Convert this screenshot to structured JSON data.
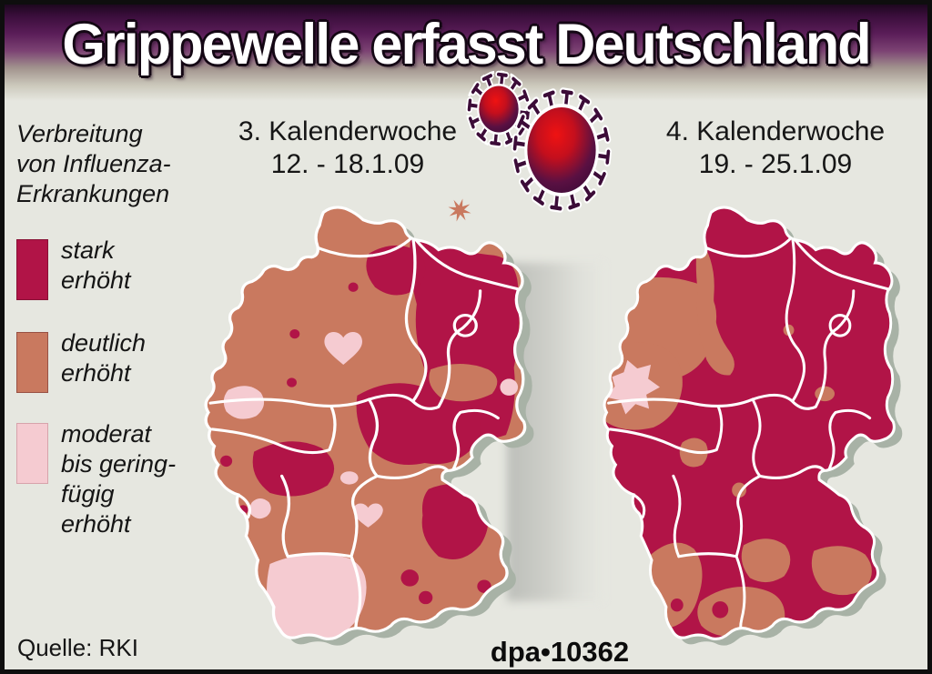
{
  "title": "Grippewelle erfasst Deutschland",
  "legend": {
    "intro": "Verbreitung\nvon Influenza-\nErkrankungen",
    "items": [
      {
        "label": "stark\nerhöht",
        "level": "stark erhöht",
        "color": "#b11447"
      },
      {
        "label": "deutlich\nerhöht",
        "level": "deutlich erhöht",
        "color": "#c9795f"
      },
      {
        "label": "moderat\nbis gering-\nfügig\nerhöht",
        "level": "moderat bis geringfügig erhöht",
        "color": "#f5cbd1"
      }
    ]
  },
  "maps": [
    {
      "week": "3. Kalenderwoche",
      "dates": "12. - 18.1.09",
      "region": "Deutschland"
    },
    {
      "week": "4. Kalenderwoche",
      "dates": "19. - 25.1.09",
      "region": "Deutschland"
    }
  ],
  "footer": {
    "source": "Quelle: RKI",
    "credit": "dpa•10362"
  },
  "icons": {
    "virus": "influenza-virus-icon",
    "virus_splat": "virus-splat-icon"
  },
  "colors": {
    "strong": "#b11447",
    "marked": "#c9795f",
    "moderate": "#f5cbd1",
    "background": "#e6e7e0",
    "map_shadow": "#a8b2a6",
    "title_gradient_top": "#1d071f",
    "title_gradient_mid": "#5a1d58",
    "virus_dark": "#3c0c38",
    "virus_red": "#dd0f14",
    "border_white": "#ffffff"
  }
}
